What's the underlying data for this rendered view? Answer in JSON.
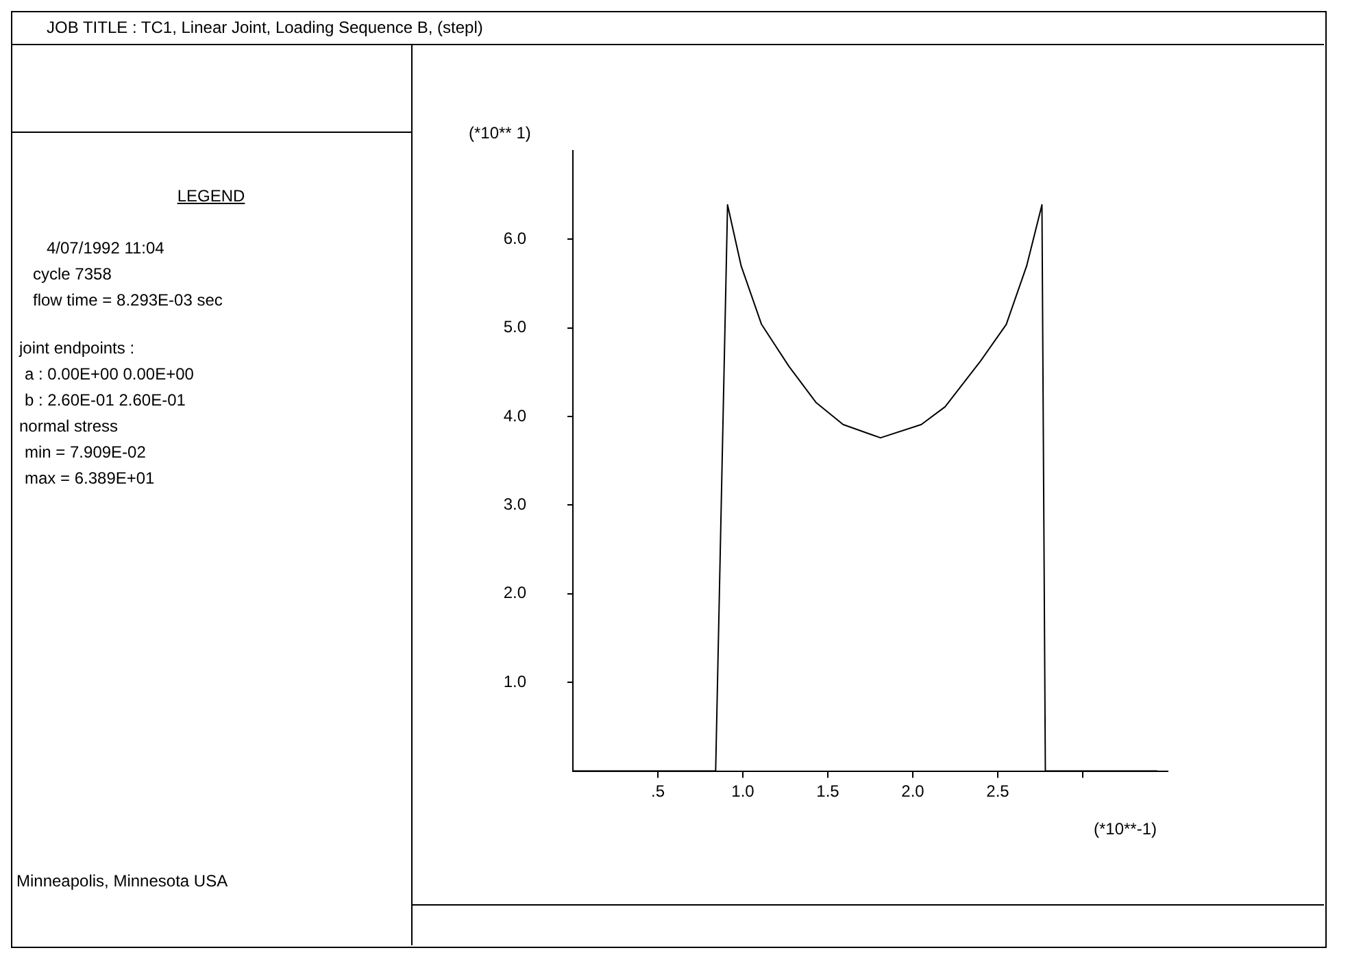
{
  "chart_data": {
    "type": "line",
    "title": "JOB TITLE : TC1, Linear Joint, Loading Sequence B, (stepl)",
    "xlabel": "(*10**-1)",
    "ylabel": "(*10** 1)",
    "annotations": [
      "LEGEND",
      "4/07/1992  11:04",
      "cycle  7358",
      "flow time = 8.293E-03 sec",
      "joint endpoints :",
      "a :  0.00E+00  0.00E+00",
      "b :  2.60E-01  2.60E-01",
      "normal stress",
      "min =  7.909E-02",
      "max =  6.389E+01",
      "Minneapolis, Minnesota USA"
    ],
    "x": [
      0,
      0.84,
      0.91,
      0.99,
      1.11,
      1.27,
      1.43,
      1.59,
      1.81,
      2.05,
      2.19,
      2.4,
      2.55,
      2.67,
      2.76,
      2.78,
      3.44
    ],
    "series": [
      {
        "color": "#000000",
        "values": [
          0,
          0,
          6.39,
          5.7,
          5.04,
          4.57,
          4.16,
          3.91,
          3.76,
          3.91,
          4.11,
          4.63,
          5.04,
          5.7,
          6.39,
          0,
          0
        ]
      }
    ],
    "xlim": [
      0,
      3.5
    ],
    "ylim": [
      0,
      7
    ],
    "xticks": [
      {
        "value": 0.5,
        "label": ".5"
      },
      {
        "value": 1,
        "label": "1.0"
      },
      {
        "value": 1.5,
        "label": "1.5"
      },
      {
        "value": 2,
        "label": "2.0"
      },
      {
        "value": 2.5,
        "label": "2.5"
      },
      {
        "value": 3,
        "label": null
      }
    ],
    "yticks": [
      {
        "value": 1,
        "label": "1.0"
      },
      {
        "value": 2,
        "label": "2.0"
      },
      {
        "value": 3,
        "label": "3.0"
      },
      {
        "value": 4,
        "label": "4.0"
      },
      {
        "value": 5,
        "label": "5.0"
      },
      {
        "value": 6,
        "label": "6.0"
      }
    ],
    "grid": false,
    "legend": false,
    "marker": "none",
    "line_style": "solid"
  }
}
